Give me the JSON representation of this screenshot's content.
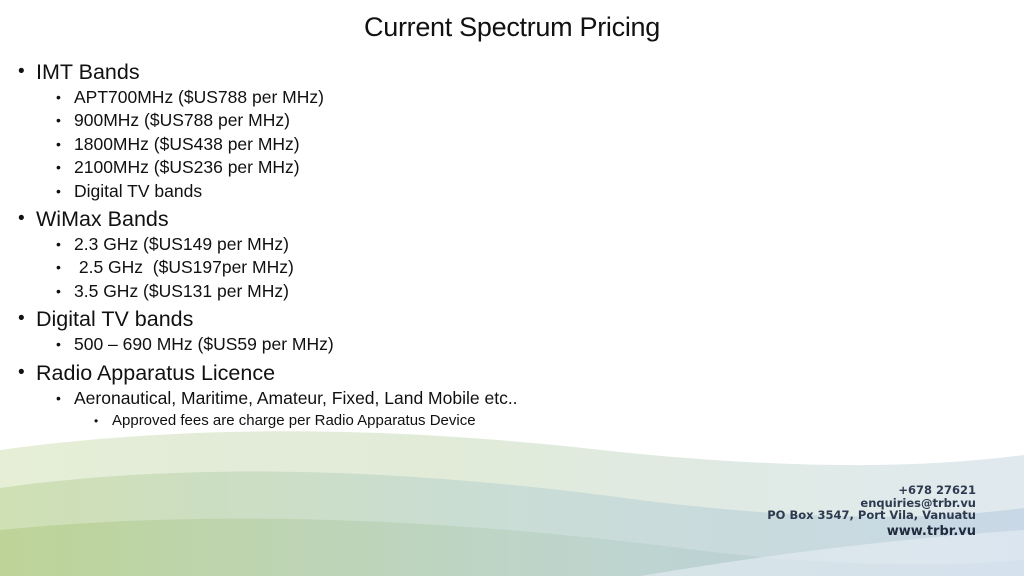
{
  "slide": {
    "title": "Current Spectrum Pricing",
    "sections": [
      {
        "heading": "IMT Bands",
        "items": [
          {
            "text": "APT700MHz ($US788 per MHz)"
          },
          {
            "text": "900MHz ($US788 per MHz)"
          },
          {
            "text": "1800MHz ($US438 per MHz)"
          },
          {
            "text": "2100MHz ($US236 per MHz)"
          },
          {
            "text": "Digital TV bands"
          }
        ]
      },
      {
        "heading": "WiMax Bands",
        "items": [
          {
            "text": "2.3 GHz ($US149 per MHz)"
          },
          {
            "text": " 2.5 GHz  ($US197per MHz)"
          },
          {
            "text": "3.5 GHz ($US131 per MHz)"
          }
        ]
      },
      {
        "heading": "Digital TV bands",
        "items": [
          {
            "text": "500 – 690 MHz ($US59 per MHz)"
          }
        ]
      },
      {
        "heading": "Radio Apparatus Licence",
        "items": [
          {
            "text": "Aeronautical, Maritime, Amateur, Fixed, Land Mobile etc..",
            "sub": [
              "Approved fees are charge per Radio Apparatus Device"
            ]
          }
        ]
      }
    ]
  },
  "contact": {
    "phone": "+678 27621",
    "email": "enquiries@trbr.vu",
    "address": "PO Box 3547, Port Vila, Vanuatu",
    "website": "www.trbr.vu"
  },
  "colors": {
    "wave_green": "#c9dcaa",
    "wave_teal": "#c2d8d4",
    "wave_blue": "#b9cde0",
    "contact_text": "#2d3a4f"
  }
}
